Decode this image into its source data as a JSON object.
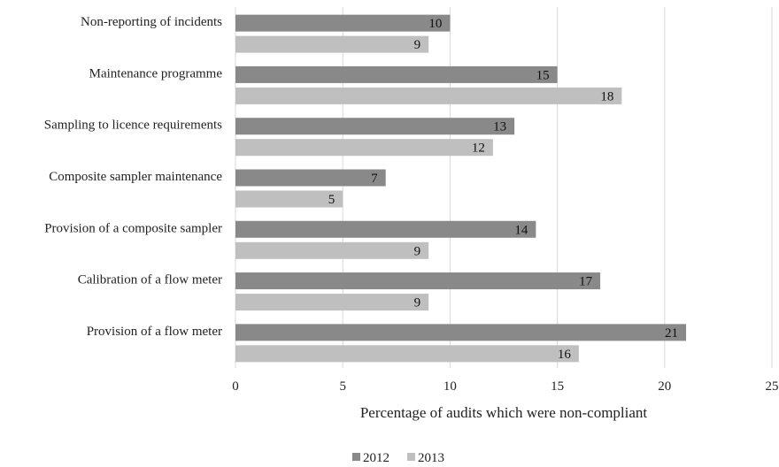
{
  "chart_data": {
    "type": "bar",
    "orientation": "horizontal",
    "categories": [
      "Non-reporting of incidents",
      "Maintenance programme",
      "Sampling to licence requirements",
      "Composite sampler maintenance",
      "Provision of a composite sampler",
      "Calibration of a flow meter",
      "Provision of a flow meter"
    ],
    "series": [
      {
        "name": "2012",
        "color": "#898989",
        "values": [
          10,
          15,
          13,
          7,
          14,
          17,
          21
        ]
      },
      {
        "name": "2013",
        "color": "#bfbfbf",
        "values": [
          9,
          18,
          12,
          5,
          9,
          9,
          16
        ]
      }
    ],
    "xlabel": "Percentage of audits which were non-compliant",
    "ylabel": "",
    "xlim": [
      0,
      25
    ],
    "xticks": [
      "0",
      "5",
      "10",
      "15",
      "20",
      "25"
    ],
    "grid": true,
    "data_labels": true,
    "legend_position": "bottom"
  }
}
